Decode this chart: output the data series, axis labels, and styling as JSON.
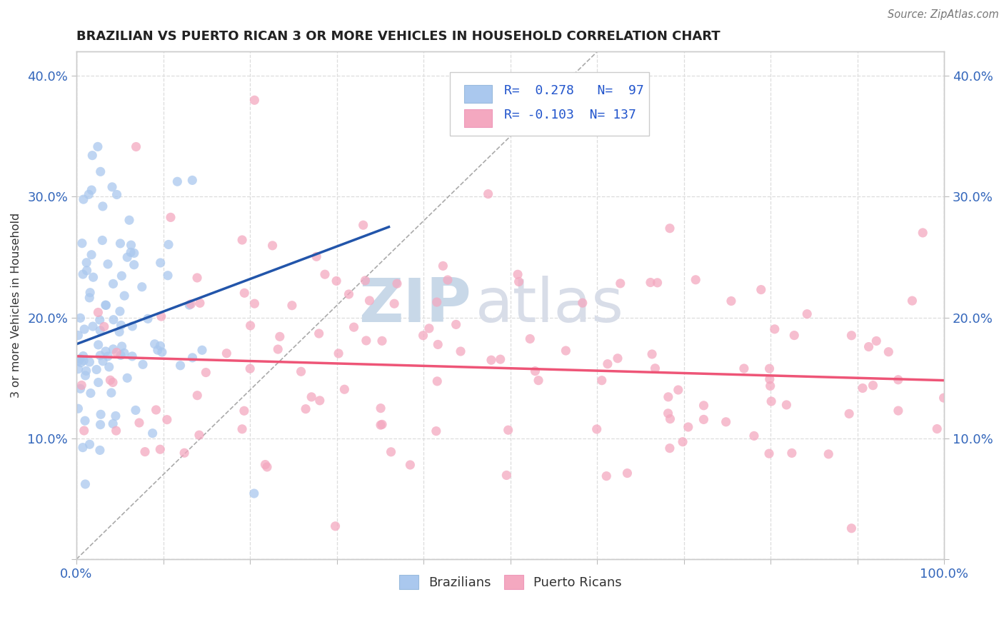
{
  "title": "BRAZILIAN VS PUERTO RICAN 3 OR MORE VEHICLES IN HOUSEHOLD CORRELATION CHART",
  "source": "Source: ZipAtlas.com",
  "ylabel": "3 or more Vehicles in Household",
  "xlim": [
    0,
    1.0
  ],
  "ylim": [
    0,
    0.42
  ],
  "xticks": [
    0.0,
    0.1,
    0.2,
    0.3,
    0.4,
    0.5,
    0.6,
    0.7,
    0.8,
    0.9,
    1.0
  ],
  "yticks": [
    0.0,
    0.1,
    0.2,
    0.3,
    0.4
  ],
  "brazilian_color": "#aac8ee",
  "puerto_rican_color": "#f4a8c0",
  "trend_blue": "#2255aa",
  "trend_pink": "#ee5577",
  "ref_line_color": "#aaaaaa",
  "background_color": "#ffffff",
  "grid_color": "#dddddd",
  "legend_R_brazilian": "0.278",
  "legend_N_brazilian": "97",
  "legend_R_puerto_rican": "-0.103",
  "legend_N_puerto_rican": "137",
  "watermark_zip": "ZIP",
  "watermark_atlas": "atlas",
  "figsize": [
    14.06,
    8.92
  ],
  "dpi": 100,
  "braz_trend_x0": 0.0,
  "braz_trend_y0": 0.178,
  "braz_trend_x1": 0.36,
  "braz_trend_y1": 0.275,
  "pr_trend_x0": 0.0,
  "pr_trend_y0": 0.168,
  "pr_trend_x1": 1.0,
  "pr_trend_y1": 0.148
}
